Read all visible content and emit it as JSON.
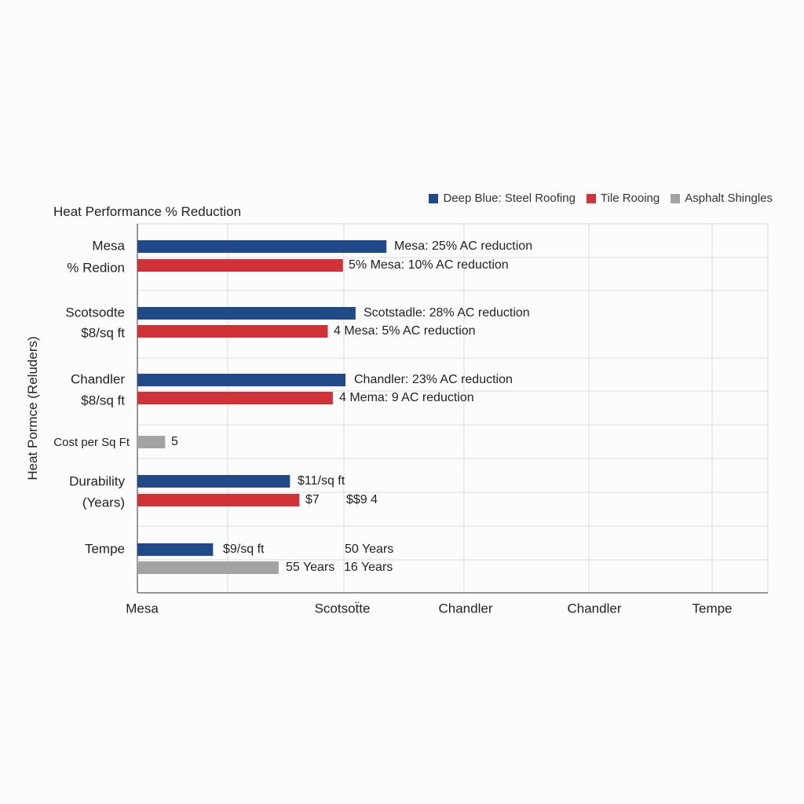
{
  "chart_data": {
    "type": "bar",
    "orientation": "horizontal",
    "title": "Heat Performance % Reduction",
    "ylabel": "Heat Pormce (Reluders)",
    "xlabel": "",
    "x_tick_labels": [
      "Mesa",
      "Scotsoẗte",
      "Chandler",
      "Chandler",
      "Tempe"
    ],
    "xlim": [
      0,
      100
    ],
    "grid": true,
    "legend_position": "top-right",
    "series": [
      {
        "name": "Deep Blue: Steel Roofing",
        "color": "#1f4a87"
      },
      {
        "name": "Tile Rooing",
        "color": "#d03238"
      },
      {
        "name": "Asphalt Shingles",
        "color": "#a3a3a3"
      }
    ],
    "categories": [
      {
        "label": "Mesa",
        "sublabel": "% Redion"
      },
      {
        "label": "Scotsodte",
        "sublabel": "$8/sq ft"
      },
      {
        "label": "Chandler",
        "sublabel": "$8/sq ft"
      },
      {
        "label": "Cost per Sq Ft",
        "sublabel": ""
      },
      {
        "label": "Durability",
        "sublabel": "(Years)"
      },
      {
        "label": "Tempe",
        "sublabel": ""
      }
    ],
    "bars": [
      {
        "category": "Mesa",
        "series": "Deep Blue: Steel Roofing",
        "value": 39.5,
        "labels": [
          "Mesa: 25% AC reduction"
        ]
      },
      {
        "category": "Mesa",
        "series": "Tile Rooing",
        "value": 32.6,
        "labels": [
          "5% Mesa: 10% AC reduction"
        ]
      },
      {
        "category": "Scotsodte",
        "series": "Deep Blue: Steel Roofing",
        "value": 34.6,
        "labels": [
          "Scotstadle: 28% AC reduction"
        ]
      },
      {
        "category": "Scotsodte",
        "series": "Tile Rooing",
        "value": 30.2,
        "labels": [
          "4 Mesa: 5% AC reduction"
        ]
      },
      {
        "category": "Chandler",
        "series": "Deep Blue: Steel Roofing",
        "value": 33.0,
        "labels": [
          "Chandler: 23% AC reduction"
        ]
      },
      {
        "category": "Chandler",
        "series": "Tile Rooing",
        "value": 31.0,
        "labels": [
          "4 Mema: 9 AC reduction"
        ]
      },
      {
        "category": "Cost per Sq Ft",
        "series": "Asphalt Shingles",
        "value": 4.4,
        "labels": [
          "5"
        ]
      },
      {
        "category": "Durability",
        "series": "Deep Blue: Steel Roofing",
        "value": 24.2,
        "labels": [
          "$11/sq ft"
        ]
      },
      {
        "category": "Durability",
        "series": "Tile Rooing",
        "value": 25.7,
        "labels": [
          "$7",
          "$$9 4"
        ]
      },
      {
        "category": "Tempe",
        "series": "Deep Blue: Steel Roofing",
        "value": 12.0,
        "labels": [
          "$9/sq ft",
          "50 Years"
        ]
      },
      {
        "category": "Tempe",
        "series": "Asphalt Shingles",
        "value": 22.4,
        "labels": [
          "55 Years",
          "16 Years"
        ]
      }
    ]
  }
}
